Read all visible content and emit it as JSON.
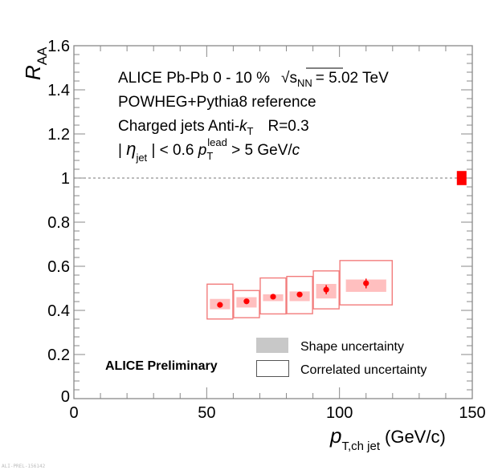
{
  "chart_data": {
    "type": "scatter",
    "title": "",
    "xlabel": {
      "main": "p",
      "sub": "T,ch jet",
      "unit": "(GeV/c)"
    },
    "ylabel": {
      "main": "R",
      "sub": "AA"
    },
    "xlim": [
      0,
      150
    ],
    "ylim": [
      0,
      1.6
    ],
    "x_major_ticks": [
      0,
      50,
      100,
      150
    ],
    "x_tick_labels": [
      "0",
      "50",
      "100",
      "150"
    ],
    "x_minor_step": 10,
    "y_major_ticks": [
      0,
      0.2,
      0.4,
      0.6,
      0.8,
      1.0,
      1.2,
      1.4,
      1.6
    ],
    "y_tick_labels": [
      "0",
      "0.2",
      "0.4",
      "0.6",
      "0.8",
      "1",
      "1.2",
      "1.4",
      "1.6"
    ],
    "y_minor_step": 0.04,
    "grid": false,
    "reference_line": {
      "y": 1,
      "style": "dashed"
    },
    "normalization_uncertainty": {
      "y": 1,
      "low": 0.968,
      "high": 1.032,
      "x": 146
    },
    "series": [
      {
        "name": "ALICE Pb-Pb 0-10%",
        "points": [
          {
            "x_low": 50,
            "x_high": 60,
            "x": 55,
            "y": 0.425,
            "stat_low": 0.418,
            "stat_high": 0.432,
            "shape_low": 0.405,
            "shape_high": 0.452,
            "corr_low": 0.361,
            "corr_high": 0.519
          },
          {
            "x_low": 60,
            "x_high": 70,
            "x": 65,
            "y": 0.441,
            "stat_low": 0.434,
            "stat_high": 0.448,
            "shape_low": 0.413,
            "shape_high": 0.46,
            "corr_low": 0.367,
            "corr_high": 0.49
          },
          {
            "x_low": 70,
            "x_high": 80,
            "x": 75,
            "y": 0.462,
            "stat_low": 0.455,
            "stat_high": 0.469,
            "shape_low": 0.442,
            "shape_high": 0.473,
            "corr_low": 0.384,
            "corr_high": 0.547
          },
          {
            "x_low": 80,
            "x_high": 90,
            "x": 85,
            "y": 0.472,
            "stat_low": 0.462,
            "stat_high": 0.483,
            "shape_low": 0.442,
            "shape_high": 0.486,
            "corr_low": 0.385,
            "corr_high": 0.554
          },
          {
            "x_low": 90,
            "x_high": 100,
            "x": 95,
            "y": 0.494,
            "stat_low": 0.473,
            "stat_high": 0.515,
            "shape_low": 0.454,
            "shape_high": 0.52,
            "corr_low": 0.407,
            "corr_high": 0.579
          },
          {
            "x_low": 100,
            "x_high": 120,
            "x": 110,
            "y": 0.523,
            "stat_low": 0.5,
            "stat_high": 0.544,
            "shape_low": 0.484,
            "shape_high": 0.54,
            "corr_low": 0.425,
            "corr_high": 0.626
          }
        ]
      }
    ],
    "annotations": {
      "line1": {
        "a": "ALICE  Pb-Pb  0 - 10 %",
        "b": "s",
        "b_sub": "NN",
        "c": "= 5.02 TeV"
      },
      "line2": "POWHEG+Pythia8 reference",
      "line3": {
        "a": "Charged jets  Anti-",
        "k": "k",
        "k_sub": "T",
        "b": "R=0.3"
      },
      "line4": {
        "a": "| ",
        "eta": "η",
        "eta_sub": "jet",
        "b": " | < 0.6  ",
        "p": "p",
        "p_sub": "T",
        "p_sup": "lead",
        "c": " > 5 GeV/",
        "c_it": "c"
      },
      "preliminary": "ALICE Preliminary"
    },
    "legend": {
      "placement": "bottom-right",
      "entries": [
        {
          "label": "Shape uncertainty",
          "style": "filled-box"
        },
        {
          "label": "Correlated uncertainty",
          "style": "open-box"
        }
      ]
    },
    "watermark": "ALI-PREL-156142"
  },
  "colors": {
    "marker": "#ff0000",
    "shape_fill": "#ffbfbf",
    "corr_stroke": "#f27c7c",
    "norm_box": "#ff0000",
    "axis": "#888888",
    "legend_fill": "#c8c8c8"
  }
}
